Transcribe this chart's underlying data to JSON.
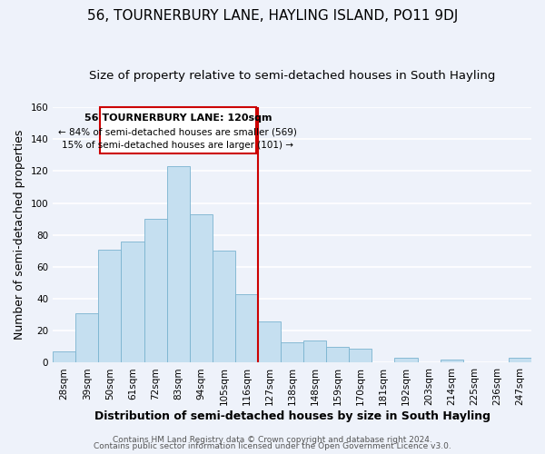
{
  "title": "56, TOURNERBURY LANE, HAYLING ISLAND, PO11 9DJ",
  "subtitle": "Size of property relative to semi-detached houses in South Hayling",
  "xlabel": "Distribution of semi-detached houses by size in South Hayling",
  "ylabel": "Number of semi-detached properties",
  "categories": [
    "28sqm",
    "39sqm",
    "50sqm",
    "61sqm",
    "72sqm",
    "83sqm",
    "94sqm",
    "105sqm",
    "116sqm",
    "127sqm",
    "138sqm",
    "148sqm",
    "159sqm",
    "170sqm",
    "181sqm",
    "192sqm",
    "203sqm",
    "214sqm",
    "225sqm",
    "236sqm",
    "247sqm"
  ],
  "values": [
    7,
    31,
    71,
    76,
    90,
    123,
    93,
    70,
    43,
    26,
    13,
    14,
    10,
    9,
    0,
    3,
    0,
    2,
    0,
    0,
    3
  ],
  "bar_color": "#c5dff0",
  "bar_edge_color": "#7ab3d0",
  "vline_index": 8,
  "vline_color": "#cc0000",
  "annotation_title": "56 TOURNERBURY LANE: 120sqm",
  "annotation_line1": "← 84% of semi-detached houses are smaller (569)",
  "annotation_line2": "15% of semi-detached houses are larger (101) →",
  "annotation_box_color": "#ffffff",
  "annotation_box_edge": "#cc0000",
  "ylim": [
    0,
    160
  ],
  "yticks": [
    0,
    20,
    40,
    60,
    80,
    100,
    120,
    140,
    160
  ],
  "footer1": "Contains HM Land Registry data © Crown copyright and database right 2024.",
  "footer2": "Contains public sector information licensed under the Open Government Licence v3.0.",
  "background_color": "#eef2fa",
  "grid_color": "#ffffff",
  "title_fontsize": 11,
  "subtitle_fontsize": 9.5,
  "axis_label_fontsize": 9,
  "tick_fontsize": 7.5,
  "footer_fontsize": 6.5
}
